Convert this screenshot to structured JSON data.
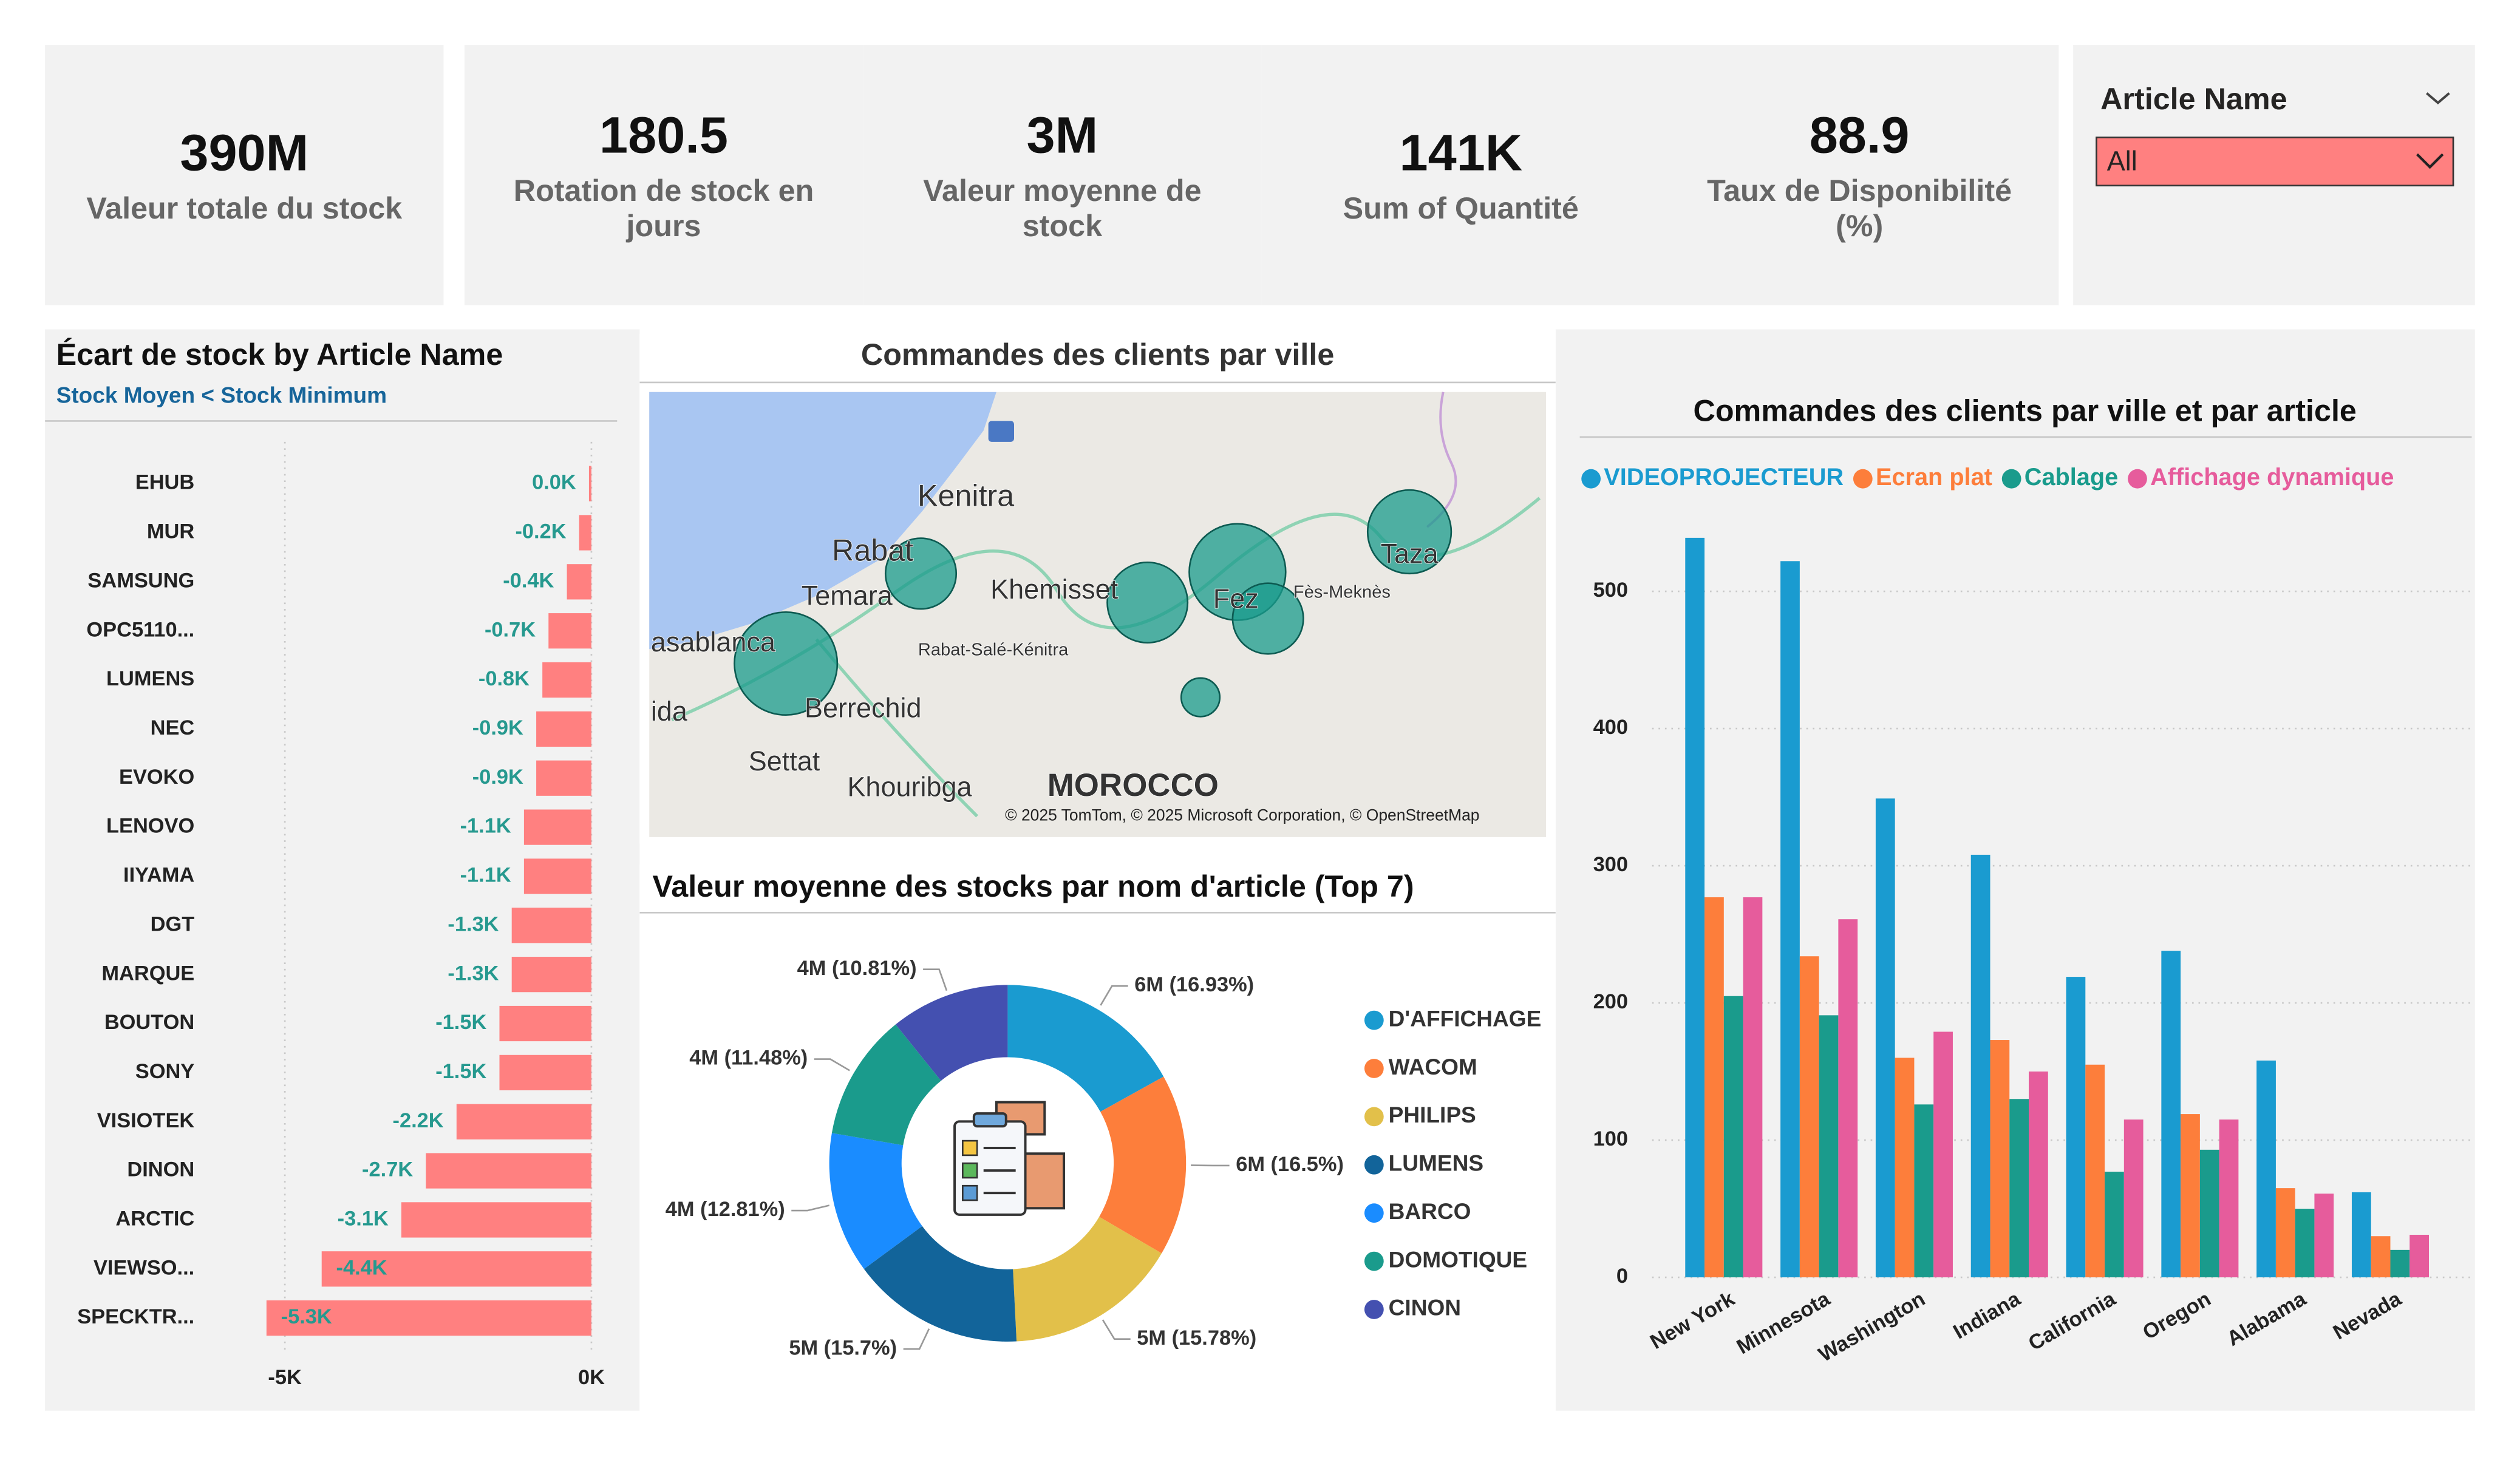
{
  "kpis": [
    {
      "value": "390M",
      "label": "Valeur totale du stock"
    },
    {
      "value": "180.5",
      "label": "Rotation de stock en jours"
    },
    {
      "value": "3M",
      "label": "Valeur moyenne de stock"
    },
    {
      "value": "141K",
      "label": "Sum of Quantité"
    },
    {
      "value": "88.9",
      "label": "Taux de Disponibilité (%)"
    }
  ],
  "filter": {
    "label": "Article Name",
    "selected": "All"
  },
  "chart_data": [
    {
      "type": "bar",
      "orientation": "horizontal",
      "title": "Écart de stock by Article Name",
      "subtitle": "Stock Moyen < Stock Minimum",
      "categories": [
        "EHUB",
        "MUR",
        "SAMSUNG",
        "OPC5110...",
        "LUMENS",
        "NEC",
        "EVOKO",
        "LENOVO",
        "IIYAMA",
        "DGT",
        "MARQUE",
        "BOUTON",
        "SONY",
        "VISIOTEK",
        "DINON",
        "ARCTIC",
        "VIEWSO...",
        "SPECKTR..."
      ],
      "values": [
        -40,
        -200,
        -400,
        -700,
        -800,
        -900,
        -900,
        -1100,
        -1100,
        -1300,
        -1300,
        -1500,
        -1500,
        -2200,
        -2700,
        -3100,
        -4400,
        -5300
      ],
      "value_labels": [
        "0.0K",
        "-0.2K",
        "-0.4K",
        "-0.7K",
        "-0.8K",
        "-0.9K",
        "-0.9K",
        "-1.1K",
        "-1.1K",
        "-1.3K",
        "-1.3K",
        "-1.5K",
        "-1.5K",
        "-2.2K",
        "-2.7K",
        "-3.1K",
        "-4.4K",
        "-5.3K"
      ],
      "color": "#ff8080",
      "value_label_color": "#26998f",
      "xlim": [
        -5400,
        0
      ],
      "xticks": [
        {
          "value": -5000,
          "label": "-5K"
        },
        {
          "value": 0,
          "label": "0K"
        }
      ],
      "grid": true
    },
    {
      "type": "map",
      "title": "Commandes des clients par ville",
      "labels": [
        "Kenitra",
        "Rabat",
        "Temara",
        "Khemisset",
        "Fez",
        "Taza",
        "asablanca",
        "ida",
        "Berrechid",
        "Settat",
        "Khouribga",
        "MOROCCO",
        "Rabat-Salé-Kénitra",
        "Fès-Meknès"
      ],
      "attribution": "© 2025 TomTom, © 2025 Microsoft Corporation, © OpenStreetMap",
      "bubble_color": "#1a9b8c"
    },
    {
      "type": "donut",
      "title": "Valeur moyenne des stocks par nom d'article (Top 7)",
      "categories": [
        "D'AFFICHAGE",
        "WACOM",
        "PHILIPS",
        "LUMENS",
        "BARCO",
        "DOMOTIQUE",
        "CINON"
      ],
      "values": [
        16.93,
        16.5,
        15.78,
        15.7,
        12.81,
        11.48,
        10.81
      ],
      "value_labels": [
        "6M (16.93%)",
        "6M (16.5%)",
        "5M (15.78%)",
        "5M (15.7%)",
        "4M (12.81%)",
        "4M (11.48%)",
        "4M (10.81%)"
      ],
      "colors": [
        "#1a9bd0",
        "#fd7e3b",
        "#e2c04a",
        "#12649a",
        "#1a8cff",
        "#1a9b8c",
        "#4450b0"
      ]
    },
    {
      "type": "bar",
      "orientation": "vertical",
      "title": "Commandes des clients par ville et par article",
      "categories": [
        "New York",
        "Minnesota",
        "Washington",
        "Indiana",
        "California",
        "Oregon",
        "Alabama",
        "Nevada"
      ],
      "series": [
        {
          "name": "VIDEOPROJECTEUR",
          "color": "#1a9bd0",
          "values": [
            539,
            522,
            349,
            308,
            219,
            238,
            158,
            62
          ]
        },
        {
          "name": "Ecran plat",
          "color": "#fd7e3b",
          "values": [
            277,
            234,
            160,
            173,
            155,
            119,
            65,
            30
          ]
        },
        {
          "name": "Cablage",
          "color": "#1a9b8c",
          "values": [
            205,
            191,
            126,
            130,
            77,
            93,
            50,
            20
          ]
        },
        {
          "name": "Affichage dynamique",
          "color": "#e65c9c",
          "values": [
            277,
            261,
            179,
            150,
            115,
            115,
            61,
            31
          ]
        }
      ],
      "ylim": [
        0,
        560
      ],
      "yticks": [
        0,
        100,
        200,
        300,
        400,
        500
      ],
      "grid": true,
      "legend": "top-left"
    }
  ]
}
